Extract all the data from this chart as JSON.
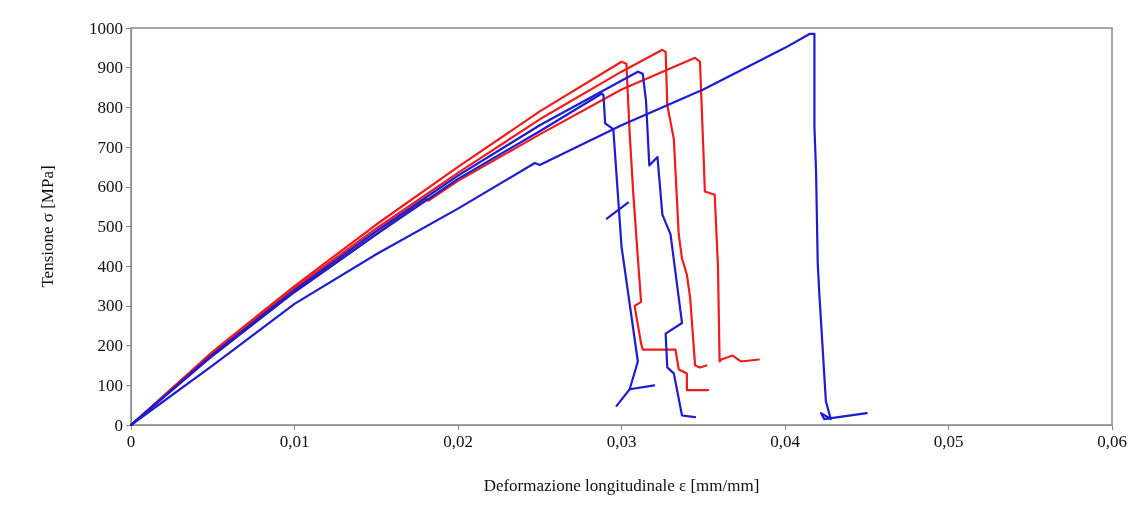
{
  "chart_data": {
    "type": "line",
    "xlabel": "Deformazione longitudinale ε [mm/mm]",
    "ylabel": "Tensione σ [MPa]",
    "xlim": [
      0,
      0.06
    ],
    "ylim": [
      0,
      1000
    ],
    "xticks": [
      0,
      {
        "value": 0.01,
        "label": "0,01"
      },
      {
        "value": 0.02,
        "label": "0,02"
      },
      {
        "value": 0.03,
        "label": "0,03"
      },
      {
        "value": 0.04,
        "label": "0,04"
      },
      {
        "value": 0.05,
        "label": "0,05"
      },
      {
        "value": 0.06,
        "label": "0,06"
      }
    ],
    "yticks": [
      0,
      100,
      200,
      300,
      400,
      500,
      600,
      700,
      800,
      900,
      1000
    ],
    "grid": false,
    "marker": "none",
    "line_style": "solid",
    "series": [
      {
        "color": "#ee1c1c",
        "x": [
          0,
          0.005,
          0.01,
          0.015,
          0.02,
          0.025,
          0.03,
          0.0303,
          0.0305,
          0.0307,
          0.031,
          0.0312,
          0.0308,
          0.0312,
          0.0313,
          0.0333,
          0.0335,
          0.034,
          0.034,
          0.0353
        ],
        "values": [
          0,
          185,
          350,
          505,
          650,
          790,
          915,
          910,
          734,
          596,
          420,
          310,
          300,
          205,
          190,
          190,
          140,
          130,
          88,
          88
        ]
      },
      {
        "color": "#ee1c1c",
        "x": [
          0,
          0.005,
          0.01,
          0.015,
          0.02,
          0.025,
          0.03,
          0.0325,
          0.0327,
          0.0328,
          0.0332,
          0.0335,
          0.0337,
          0.034,
          0.0342,
          0.0345,
          0.0348,
          0.0352
        ],
        "values": [
          0,
          180,
          345,
          495,
          635,
          770,
          890,
          945,
          940,
          806,
          720,
          480,
          420,
          378,
          320,
          150,
          145,
          150
        ]
      },
      {
        "color": "#ee1c1c",
        "x": [
          0,
          0.005,
          0.01,
          0.015,
          0.018,
          0.0182,
          0.02,
          0.025,
          0.03,
          0.0345,
          0.0348,
          0.035,
          0.0351,
          0.0357,
          0.0359,
          0.036,
          0.0361,
          0.0368,
          0.0373,
          0.0384
        ],
        "values": [
          0,
          175,
          335,
          480,
          570,
          565,
          615,
          732,
          845,
          925,
          915,
          700,
          588,
          580,
          400,
          160,
          165,
          175,
          160,
          165
        ]
      },
      {
        "color": "#1c1cd0",
        "x": [
          0,
          0.005,
          0.01,
          0.015,
          0.02,
          0.025,
          0.0288,
          0.0289,
          0.029,
          0.0295,
          0.03,
          0.031,
          0.0305,
          0.0297
        ],
        "values": [
          0,
          175,
          335,
          480,
          620,
          740,
          835,
          830,
          760,
          745,
          450,
          160,
          90,
          48
        ]
      },
      {
        "color": "#1c1cd0",
        "x": [
          0.0305,
          0.032
        ],
        "values": [
          90,
          100
        ]
      },
      {
        "color": "#1c1cd0",
        "x": [
          0.0291,
          0.0304
        ],
        "values": [
          520,
          560
        ]
      },
      {
        "color": "#1c1cd0",
        "x": [
          0,
          0.005,
          0.01,
          0.015,
          0.02,
          0.025,
          0.031,
          0.0313,
          0.0315,
          0.0317,
          0.0322,
          0.0325,
          0.033,
          0.0337,
          0.0327,
          0.0328,
          0.0332,
          0.0337,
          0.0345
        ],
        "values": [
          0,
          178,
          340,
          488,
          628,
          755,
          890,
          885,
          816,
          654,
          675,
          530,
          480,
          257,
          230,
          145,
          130,
          24,
          20
        ]
      },
      {
        "color": "#1c1cd0",
        "x": [
          0,
          0.005,
          0.01,
          0.015,
          0.02,
          0.0247,
          0.025,
          0.03,
          0.035,
          0.04,
          0.0415,
          0.0418,
          0.0418,
          0.0419,
          0.042,
          0.0421,
          0.0425,
          0.0428,
          0.0422,
          0.0424,
          0.045
        ],
        "values": [
          0,
          150,
          305,
          430,
          545,
          660,
          655,
          755,
          845,
          950,
          985,
          985,
          750,
          640,
          410,
          330,
          60,
          15,
          30,
          15,
          30
        ]
      }
    ]
  }
}
